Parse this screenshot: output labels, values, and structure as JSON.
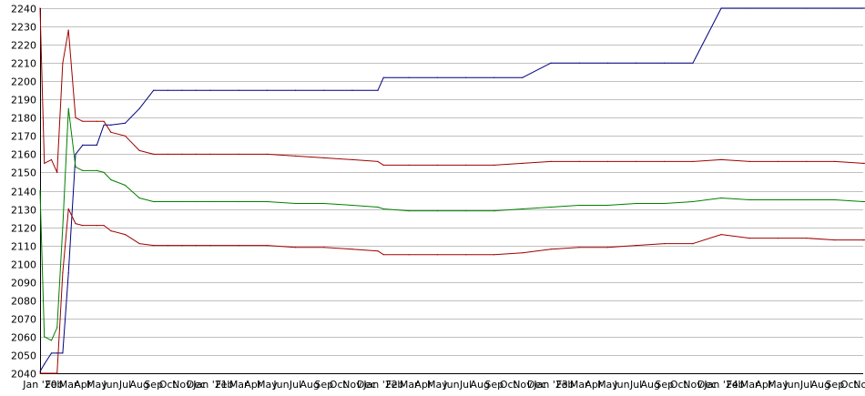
{
  "chart_data": {
    "type": "line",
    "title": "",
    "xlabel": "",
    "ylabel": "",
    "ylim": [
      2040,
      2240
    ],
    "yticks": [
      2040,
      2050,
      2060,
      2070,
      2080,
      2090,
      2100,
      2110,
      2120,
      2130,
      2140,
      2150,
      2160,
      2170,
      2180,
      2190,
      2200,
      2210,
      2220,
      2230,
      2240
    ],
    "grid": true,
    "legend": "none",
    "x_tick_labels": [
      "Jan '20",
      "Feb",
      "Mar",
      "Apr",
      "May",
      "Jun",
      "Jul",
      "Aug",
      "Sep",
      "Oct",
      "Nov",
      "Dec",
      "Jan '21",
      "Feb",
      "Mar",
      "Apr",
      "May",
      "Jun",
      "Jul",
      "Aug",
      "Sep",
      "Oct",
      "Nov",
      "Dec",
      "Jan '22",
      "Feb",
      "Mar",
      "Apr",
      "May",
      "Jun",
      "Jul",
      "Aug",
      "Sep",
      "Oct",
      "Nov",
      "Dec",
      "Jan '23",
      "Feb",
      "Mar",
      "Apr",
      "May",
      "Jun",
      "Jul",
      "Aug",
      "Sep",
      "Oct",
      "Nov",
      "Dec",
      "Jan '24",
      "Feb",
      "Mar",
      "Apr",
      "May",
      "Jun",
      "Jul",
      "Aug",
      "Sep",
      "Oct",
      "Nov"
    ],
    "x": [
      0,
      0.3,
      0.8,
      1.2,
      1.6,
      2.0,
      2.5,
      3,
      4,
      4.5,
      5,
      6,
      7,
      8,
      9,
      10,
      11,
      12,
      14,
      16,
      18,
      20,
      22,
      23.8,
      24.2,
      26,
      28,
      30,
      32,
      34,
      36,
      38,
      40,
      42,
      44,
      46,
      48,
      50,
      52,
      54,
      56,
      58,
      58.9
    ],
    "series": [
      {
        "color": "#000080",
        "values": [
          2041,
          2045,
          2051,
          2051,
          2051,
          2095,
          2160,
          2165,
          2165,
          2176,
          2176,
          2177,
          2185,
          2195,
          2195,
          2195,
          2195,
          2195,
          2195,
          2195,
          2195,
          2195,
          2195,
          2195,
          2202,
          2202,
          2202,
          2202,
          2202,
          2202,
          2210,
          2210,
          2210,
          2210,
          2210,
          2210,
          2240,
          2240,
          2240,
          2240,
          2240,
          2240,
          2240
        ]
      },
      {
        "color": "#a00000",
        "values": [
          2240,
          2155,
          2157,
          2150,
          2210,
          2228,
          2180,
          2178,
          2178,
          2178,
          2172,
          2170,
          2162,
          2160,
          2160,
          2160,
          2160,
          2160,
          2160,
          2160,
          2159,
          2158,
          2157,
          2156,
          2154,
          2154,
          2154,
          2154,
          2154,
          2155,
          2156,
          2156,
          2156,
          2156,
          2156,
          2156,
          2157,
          2156,
          2156,
          2156,
          2156,
          2155,
          2155
        ]
      },
      {
        "color": "#008000",
        "values": [
          2140,
          2060,
          2058,
          2065,
          2120,
          2185,
          2153,
          2151,
          2151,
          2150,
          2146,
          2143,
          2136,
          2134,
          2134,
          2134,
          2134,
          2134,
          2134,
          2134,
          2133,
          2133,
          2132,
          2131,
          2130,
          2129,
          2129,
          2129,
          2129,
          2130,
          2131,
          2132,
          2132,
          2133,
          2133,
          2134,
          2136,
          2135,
          2135,
          2135,
          2135,
          2134,
          2134
        ]
      },
      {
        "color": "#a00000",
        "values": [
          2040,
          2040,
          2040,
          2040,
          2095,
          2130,
          2122,
          2121,
          2121,
          2121,
          2118,
          2116,
          2111,
          2110,
          2110,
          2110,
          2110,
          2110,
          2110,
          2110,
          2109,
          2109,
          2108,
          2107,
          2105,
          2105,
          2105,
          2105,
          2105,
          2106,
          2108,
          2109,
          2109,
          2110,
          2111,
          2111,
          2116,
          2114,
          2114,
          2114,
          2113,
          2113,
          2113
        ]
      }
    ]
  }
}
